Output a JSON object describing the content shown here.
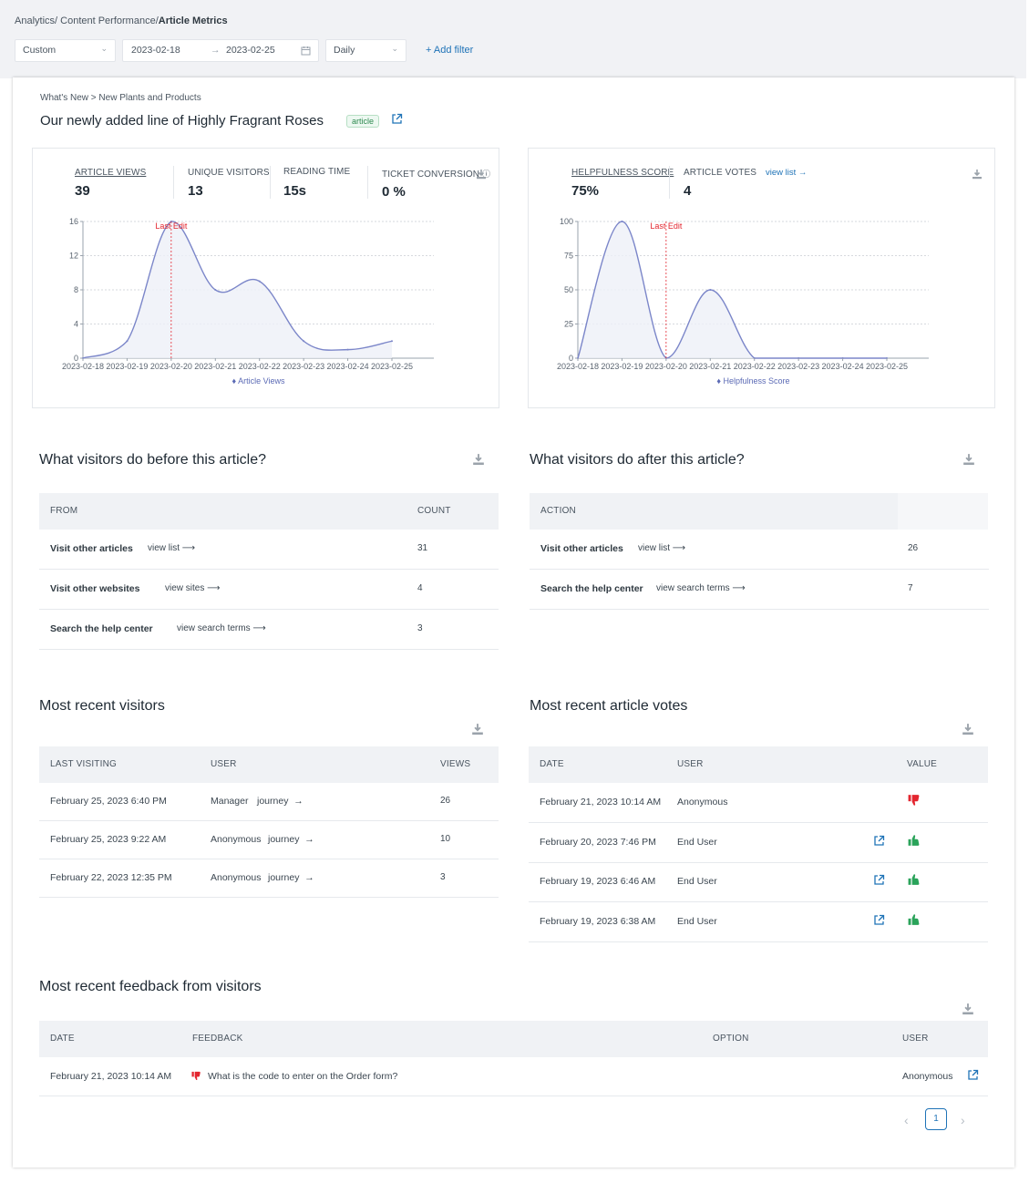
{
  "breadcrumb": {
    "part1": "Analytics/",
    "part2": " Content Performance/",
    "current": "Article Metrics"
  },
  "filters": {
    "range": "Custom",
    "start": "2023-02-18",
    "arrow": "→",
    "end": "2023-02-25",
    "granularity": "Daily",
    "add_filter": "+ Add filter"
  },
  "article": {
    "path": "What's New > New Plants and Products",
    "title": "Our newly added line of Highly Fragrant Roses",
    "badge": "article"
  },
  "metrics_left": {
    "items": [
      {
        "label": "ARTICLE VIEWS",
        "value": "39"
      },
      {
        "label": "UNIQUE VISITORS",
        "value": "13"
      },
      {
        "label": "READING TIME",
        "value": "15s"
      },
      {
        "label": "TICKET CONVERSION",
        "value": "0 %"
      }
    ],
    "info_icon": "info-icon"
  },
  "metrics_right": {
    "items": [
      {
        "label": "HELPFULNESS SCORE",
        "value": "75%"
      },
      {
        "label": "ARTICLE VOTES",
        "value": "4"
      }
    ],
    "view_list": "view list →"
  },
  "chart_data": [
    {
      "type": "area",
      "x": [
        "2023-02-18",
        "2023-02-19",
        "2023-02-20",
        "2023-02-21",
        "2023-02-22",
        "2023-02-23",
        "2023-02-24",
        "2023-02-25"
      ],
      "series": [
        {
          "name": "Article Views",
          "values": [
            0,
            2,
            16,
            8,
            9,
            2,
            1,
            2
          ]
        }
      ],
      "ylim": [
        0,
        16
      ],
      "yticks": [
        "0",
        "4",
        "8",
        "12",
        "16"
      ],
      "annotation": {
        "label": "Last Edit",
        "x": "2023-02-20"
      },
      "grid": true,
      "legend": "bottom",
      "color": "#7b86c9"
    },
    {
      "type": "area",
      "x": [
        "2023-02-18",
        "2023-02-19",
        "2023-02-20",
        "2023-02-21",
        "2023-02-22",
        "2023-02-23",
        "2023-02-24",
        "2023-02-25"
      ],
      "series": [
        {
          "name": "Helpfulness Score",
          "values": [
            0,
            100,
            0,
            50,
            0,
            0,
            0,
            0
          ]
        }
      ],
      "ylim": [
        0,
        100
      ],
      "yticks": [
        "0",
        "25",
        "50",
        "75",
        "100"
      ],
      "annotation": {
        "label": "Last Edit",
        "x": "2023-02-20"
      },
      "grid": true,
      "legend": "bottom",
      "color": "#7b86c9"
    }
  ],
  "before": {
    "title": "What visitors do before this article?",
    "headers": {
      "from": "FROM",
      "count": "COUNT"
    },
    "rows": [
      {
        "label": "Visit other articles",
        "link": "view list ⟶",
        "count": "31"
      },
      {
        "label": "Visit other websites",
        "link": "view sites ⟶",
        "count": "4"
      },
      {
        "label": "Search the help center",
        "link": "view search terms ⟶",
        "count": "3"
      }
    ]
  },
  "after": {
    "title": "What visitors do after this article?",
    "headers": {
      "action": "ACTION"
    },
    "rows": [
      {
        "label": "Visit other articles",
        "link": "view list ⟶",
        "count": "26"
      },
      {
        "label": "Search the help center",
        "link": "view search terms ⟶",
        "count": "7"
      }
    ]
  },
  "visitors": {
    "title": "Most recent visitors",
    "headers": {
      "last": "LAST VISITING",
      "user": "USER",
      "views": "VIEWS"
    },
    "rows": [
      {
        "date": "February 25, 2023 6:40 PM",
        "user": "Manager",
        "journey": "journey  →",
        "views": "26"
      },
      {
        "date": "February 25, 2023 9:22 AM",
        "user": "Anonymous",
        "journey": "journey  →",
        "views": "10"
      },
      {
        "date": "February 22, 2023 12:35 PM",
        "user": "Anonymous",
        "journey": "journey  →",
        "views": "3"
      }
    ]
  },
  "votes": {
    "title": "Most recent article votes",
    "headers": {
      "date": "DATE",
      "user": "USER",
      "value": "VALUE"
    },
    "rows": [
      {
        "date": "February 21, 2023 10:14 AM",
        "user": "Anonymous",
        "vote": "down",
        "link": false
      },
      {
        "date": "February 20, 2023 7:46 PM",
        "user": "End User",
        "vote": "up",
        "link": true
      },
      {
        "date": "February 19, 2023 6:46 AM",
        "user": "End User",
        "vote": "up",
        "link": true
      },
      {
        "date": "February 19, 2023 6:38 AM",
        "user": "End User",
        "vote": "up",
        "link": true
      }
    ],
    "colors": {
      "up": "#2aa35a",
      "down": "#e3262f"
    }
  },
  "feedback": {
    "title": "Most recent feedback from visitors",
    "headers": {
      "date": "DATE",
      "feedback": "FEEDBACK",
      "option": "OPTION",
      "user": "USER"
    },
    "rows": [
      {
        "date": "February 21, 2023 10:14 AM",
        "feedback": "What is the code to enter on the Order form?",
        "user": "Anonymous"
      }
    ]
  },
  "pagination": {
    "prev": "‹",
    "page": "1",
    "next": "›"
  },
  "colors": {
    "link": "#1f73b7",
    "accent": "#7b86c9",
    "last_edit": "#e3262f"
  }
}
